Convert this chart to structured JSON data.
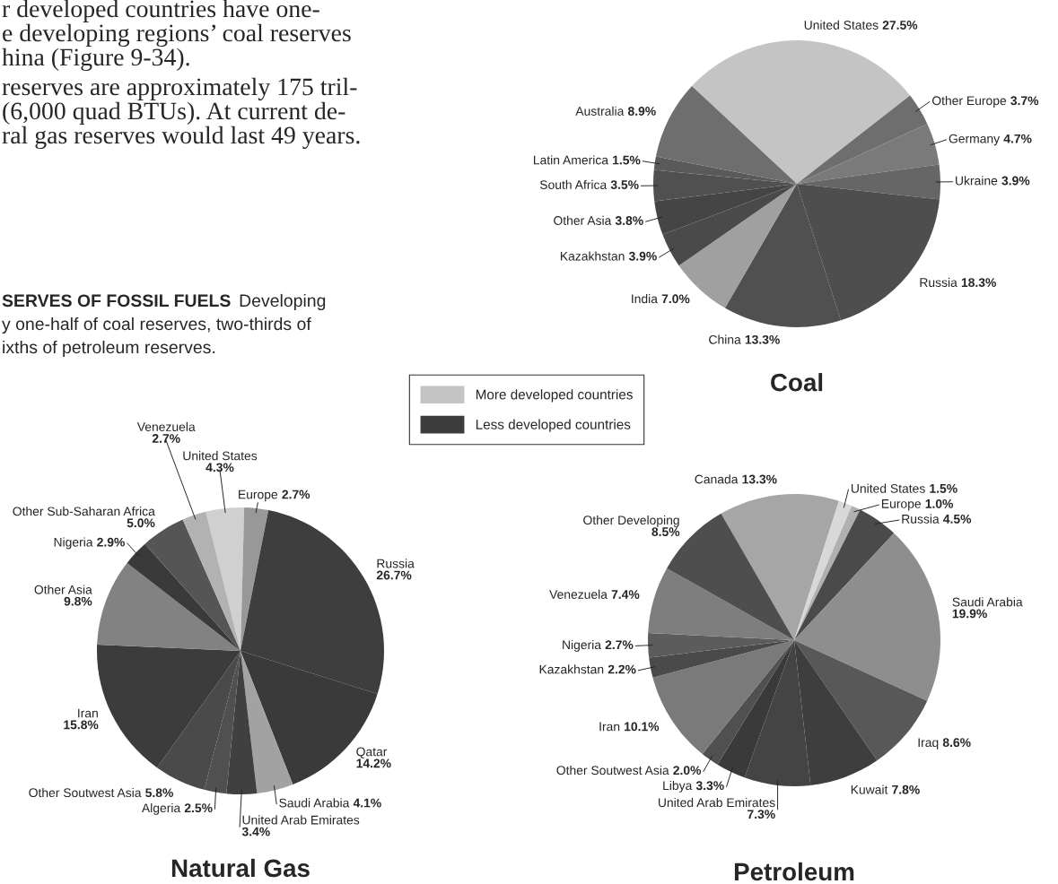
{
  "chart_data": [
    {
      "type": "other",
      "annotations": [
        "r developed countries have one-",
        "e developing regions’ coal reserves",
        "hina (Figure 9-34).",
        "reserves are approximately 175 tril-",
        "(6,000 quad BTUs). At current de-",
        "ral gas reserves would last 49 years."
      ]
    },
    {
      "type": "pie",
      "title": "Coal",
      "categories": [
        "United States",
        "Other Europe",
        "Germany",
        "Ukraine",
        "Russia",
        "China",
        "India",
        "Kazakhstan",
        "Other Asia",
        "South Africa",
        "Latin America",
        "Australia"
      ],
      "values": [
        27.5,
        3.7,
        4.7,
        3.9,
        18.3,
        13.3,
        7.0,
        3.9,
        3.8,
        3.5,
        1.5,
        8.9
      ],
      "value_labels": [
        "27.5%",
        "3.7%",
        "4.7%",
        "3.9%",
        "18.3%",
        "13.3%",
        "7.0%",
        "3.9%",
        "3.8%",
        "3.5%",
        "1.5%",
        "8.9%"
      ],
      "colors": [
        "#c4c4c4",
        "#6e6e6e",
        "#7a7a7a",
        "#666666",
        "#4e4e4e",
        "#505050",
        "#a0a0a0",
        "#4a4a4a",
        "#454545",
        "#505050",
        "#5a5a5a",
        "#6e6e6e"
      ]
    },
    {
      "type": "other",
      "title": "SERVES OF FOSSIL FUELS",
      "annotations": [
        "Developing",
        "y one-half of coal reserves, two-thirds of",
        "ixths of petroleum reserves."
      ]
    },
    {
      "type": "other",
      "legend": "center",
      "series": [
        {
          "name": "More developed countries",
          "color": "#c4c4c4"
        },
        {
          "name": "Less developed countries",
          "color": "#3c3c3c"
        }
      ]
    },
    {
      "type": "pie",
      "title": "Natural Gas",
      "categories": [
        "United States",
        "Europe",
        "Russia",
        "Qatar",
        "Saudi Arabia",
        "United Arab Emirates",
        "Algeria",
        "Other Soutwest Asia",
        "Iran",
        "Other Asia",
        "Nigeria",
        "Other Sub-Saharan Africa",
        "Venezuela"
      ],
      "values": [
        4.3,
        2.7,
        26.7,
        14.2,
        4.1,
        3.4,
        2.5,
        5.8,
        15.8,
        9.8,
        2.9,
        5.0,
        2.7
      ],
      "value_labels": [
        "4.3%",
        "2.7%",
        "26.7%",
        "14.2%",
        "4.1%",
        "3.4%",
        "2.5%",
        "5.8%",
        "15.8%",
        "9.8%",
        "2.9%",
        "5.0%",
        "2.7%"
      ],
      "colors": [
        "#d0d0d0",
        "#989898",
        "#3e3e3e",
        "#3a3a3a",
        "#a2a2a2",
        "#404040",
        "#505050",
        "#4a4a4a",
        "#3c3c3c",
        "#828282",
        "#3a3a3a",
        "#555555",
        "#b2b2b2"
      ]
    },
    {
      "type": "pie",
      "title": "Petroleum",
      "categories": [
        "Canada",
        "United States",
        "Europe",
        "Russia",
        "Saudi Arabia",
        "Iraq",
        "Kuwait",
        "United Arab Emirates",
        "Libya",
        "Other Soutwest Asia",
        "Iran",
        "Kazakhstan",
        "Nigeria",
        "Venezuela",
        "Other Developing"
      ],
      "values": [
        13.3,
        1.5,
        1.0,
        4.5,
        19.9,
        8.6,
        7.8,
        7.3,
        3.3,
        2.0,
        10.1,
        2.2,
        2.7,
        7.4,
        8.5
      ],
      "value_labels": [
        "13.3%",
        "1.5%",
        "1.0%",
        "4.5%",
        "19.9%",
        "8.6%",
        "7.8%",
        "7.3%",
        "3.3%",
        "2.0%",
        "10.1%",
        "2.2%",
        "2.7%",
        "7.4%",
        "8.5%"
      ],
      "colors": [
        "#a6a6a6",
        "#d8d8d8",
        "#b0b0b0",
        "#4a4a4a",
        "#8e8e8e",
        "#585858",
        "#3e3e3e",
        "#444444",
        "#3a3a3a",
        "#505050",
        "#7a7a7a",
        "#4a4a4a",
        "#5c5c5c",
        "#7e7e7e",
        "#4e4e4e"
      ]
    }
  ]
}
